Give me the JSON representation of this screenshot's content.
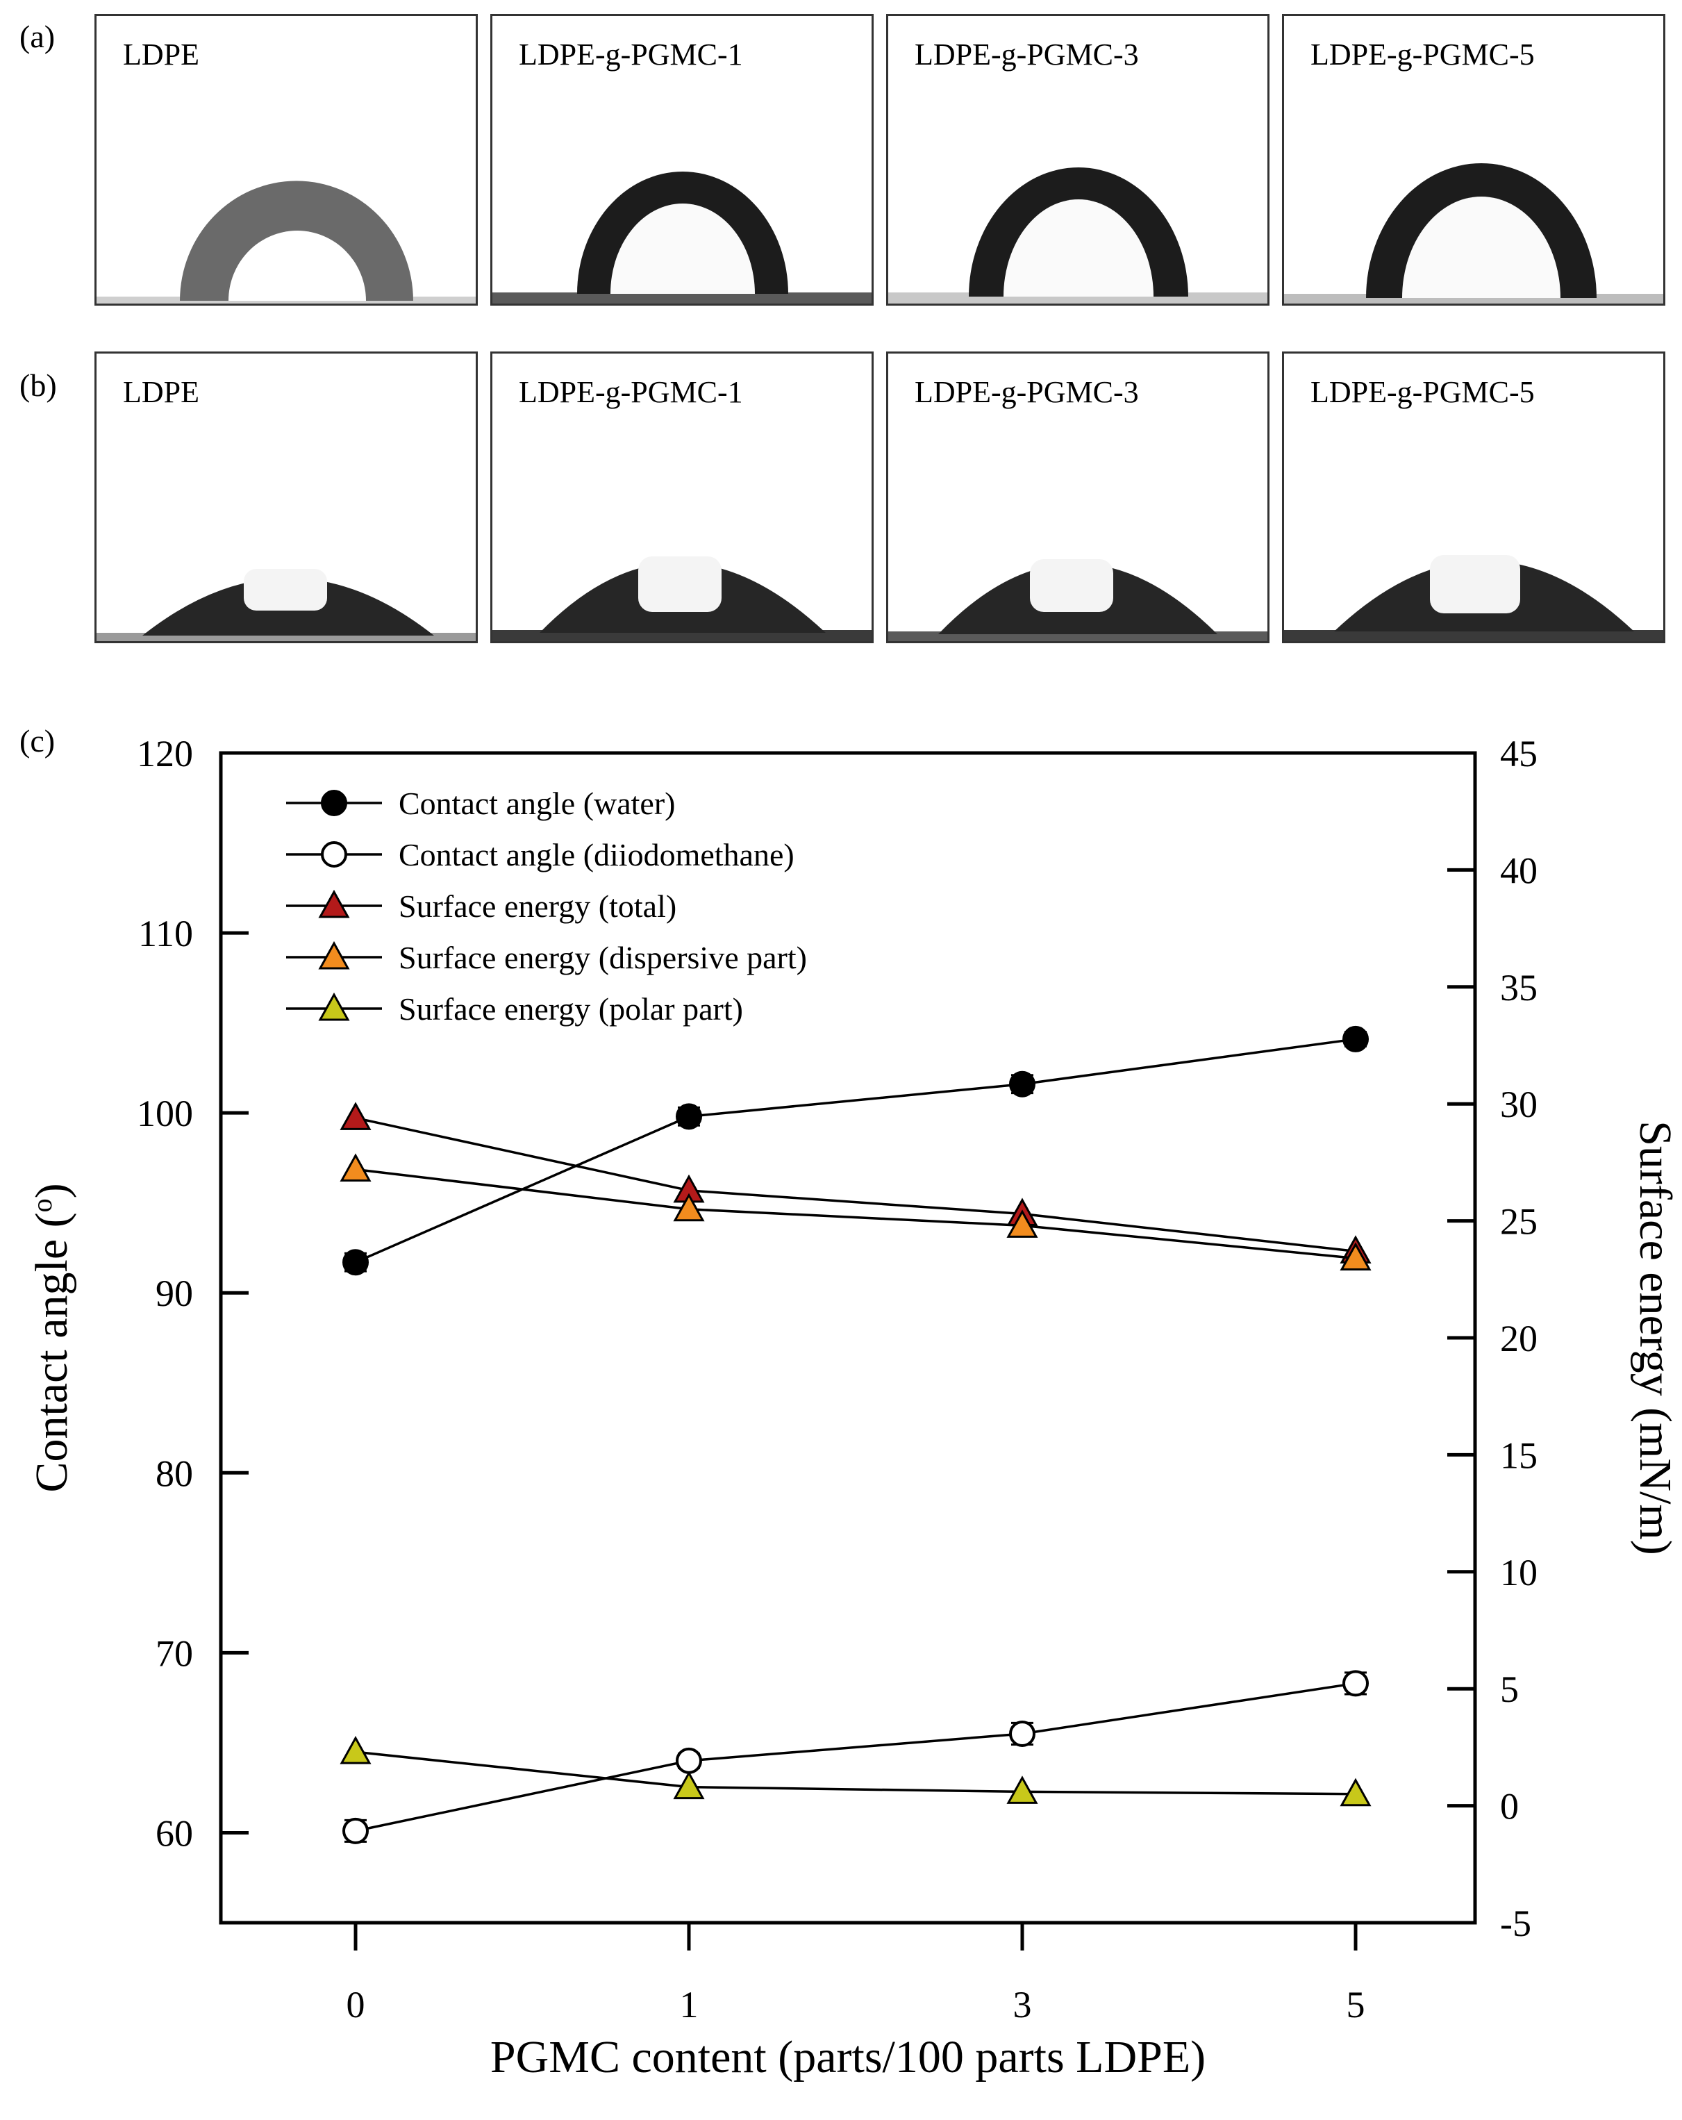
{
  "panels": {
    "a": {
      "label": "(a)",
      "images": [
        "LDPE",
        "LDPE-g-PGMC-1",
        "LDPE-g-PGMC-3",
        "LDPE-g-PGMC-5"
      ]
    },
    "b": {
      "label": "(b)",
      "images": [
        "LDPE",
        "LDPE-g-PGMC-1",
        "LDPE-g-PGMC-3",
        "LDPE-g-PGMC-5"
      ]
    },
    "c": {
      "label": "(c)"
    }
  },
  "chart_data": {
    "type": "line",
    "categories": [
      "0",
      "1",
      "3",
      "5"
    ],
    "xlabel": "PGMC content (parts/100 parts LDPE)",
    "ylabel": "Contact angle (",
    "ylabel_sup": "o",
    "ylabel_end": ")",
    "y2label": "Surface energy (mN/m)",
    "ylim": [
      55,
      120
    ],
    "y2lim": [
      -5,
      45
    ],
    "yticks": [
      60,
      70,
      80,
      90,
      100,
      110,
      120
    ],
    "y2ticks": [
      -5,
      0,
      5,
      10,
      15,
      20,
      25,
      30,
      35,
      40,
      45
    ],
    "legend_position": "top-left",
    "series": [
      {
        "name": "Contact angle (water)",
        "axis": "left",
        "marker": "circle",
        "fill": "#000000",
        "values": [
          91.7,
          99.8,
          101.6,
          104.1
        ],
        "errors": [
          0.5,
          0.5,
          0.5,
          0.4
        ]
      },
      {
        "name": "Contact angle (diiodomethane)",
        "axis": "left",
        "marker": "circle",
        "fill": "#ffffff",
        "values": [
          60.1,
          64.0,
          65.5,
          68.3
        ],
        "errors": [
          0.6,
          0.4,
          0.6,
          0.6
        ]
      },
      {
        "name": "Surface energy (total)",
        "axis": "right",
        "marker": "triangle",
        "fill": "#b31a1a",
        "values": [
          29.4,
          26.3,
          25.3,
          23.7
        ]
      },
      {
        "name": "Surface energy (dispersive part)",
        "axis": "right",
        "marker": "triangle",
        "fill": "#f28c1e",
        "values": [
          27.2,
          25.5,
          24.8,
          23.4
        ]
      },
      {
        "name": "Surface energy (polar part)",
        "axis": "right",
        "marker": "triangle",
        "fill": "#c8c81a",
        "values": [
          2.3,
          0.8,
          0.6,
          0.5
        ]
      }
    ]
  }
}
